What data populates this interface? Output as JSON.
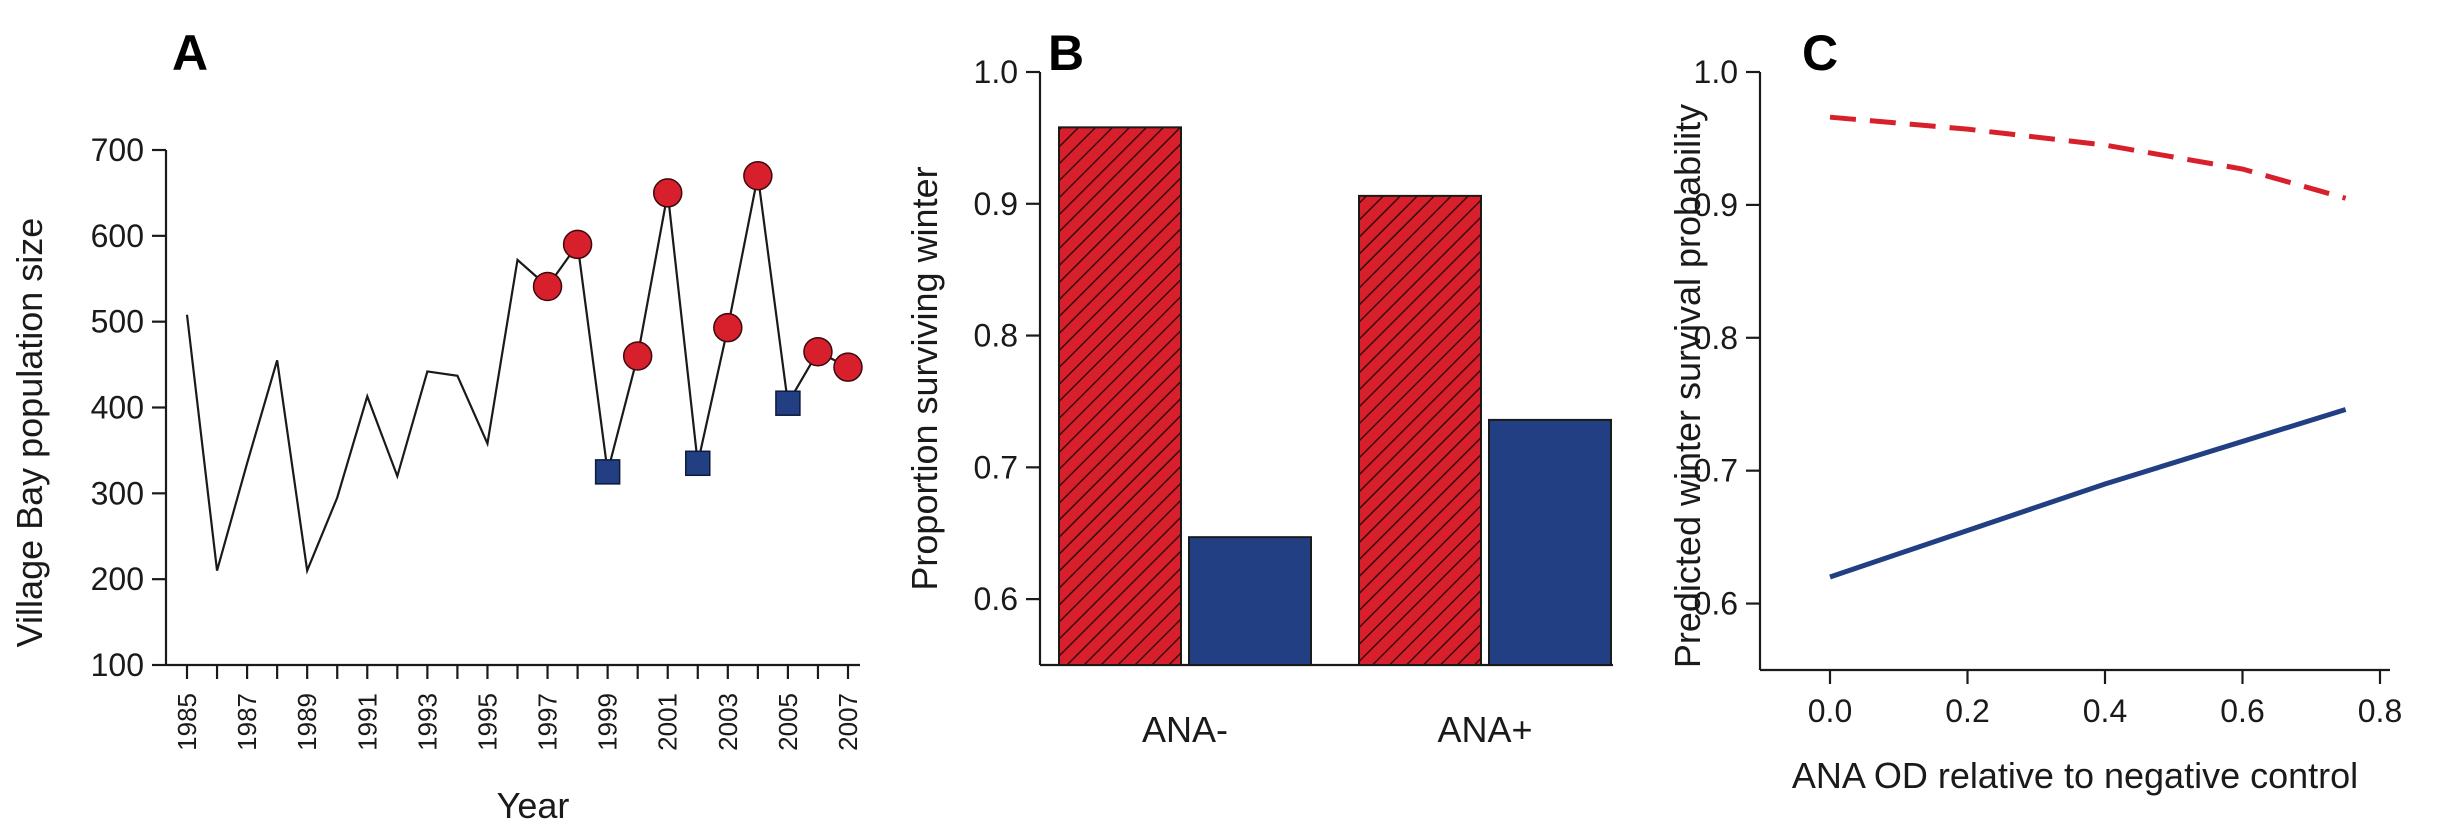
{
  "colors": {
    "red": "#d7202b",
    "blue": "#233f83",
    "line": "#1a1a1a"
  },
  "chart_data": [
    {
      "panel": "A",
      "type": "line",
      "xlabel": "Year",
      "ylabel": "Village Bay population size",
      "ylim": [
        100,
        700
      ],
      "yticks": [
        100,
        200,
        300,
        400,
        500,
        600,
        700
      ],
      "xlim": [
        1985,
        2007
      ],
      "xticks": [
        "1985",
        "1987",
        "1989",
        "1991",
        "1993",
        "1995",
        "1997",
        "1999",
        "2001",
        "2003",
        "2005",
        "2007"
      ],
      "x": [
        1985,
        1986,
        1987,
        1988,
        1989,
        1990,
        1991,
        1992,
        1993,
        1994,
        1995,
        1996,
        1997,
        1998,
        1999,
        2000,
        2001,
        2002,
        2003,
        2004,
        2005,
        2006,
        2007
      ],
      "y": [
        508,
        210,
        335,
        455,
        210,
        295,
        413,
        320,
        442,
        437,
        358,
        572,
        541,
        590,
        325,
        460,
        650,
        335,
        493,
        670,
        405,
        465,
        447
      ],
      "red_circle_years": [
        1997,
        1998,
        2000,
        2001,
        2003,
        2004,
        2006,
        2007
      ],
      "blue_square_years": [
        1999,
        2002,
        2005
      ]
    },
    {
      "panel": "B",
      "type": "bar",
      "ylabel": "Proportion surviving winter",
      "ylim": [
        0.55,
        1.0
      ],
      "yticks": [
        "0.6",
        "0.7",
        "0.8",
        "0.9",
        "1.0"
      ],
      "categories": [
        "ANA-",
        "ANA+"
      ],
      "series": [
        {
          "values": [
            0.958,
            0.906
          ]
        },
        {
          "values": [
            0.647,
            0.736
          ]
        }
      ]
    },
    {
      "panel": "C",
      "type": "line",
      "xlabel": "ANA OD relative to negative control",
      "ylabel": "Predicted winter survival probability",
      "xlim": [
        0.0,
        0.8
      ],
      "xticks": [
        "0.0",
        "0.2",
        "0.4",
        "0.6",
        "0.8"
      ],
      "ylim": [
        0.55,
        1.0
      ],
      "yticks": [
        "0.6",
        "0.7",
        "0.8",
        "0.9",
        "1.0"
      ],
      "series": [
        {
          "style": "dashed",
          "x": [
            0.0,
            0.2,
            0.4,
            0.6,
            0.75
          ],
          "y": [
            0.966,
            0.957,
            0.945,
            0.927,
            0.905
          ]
        },
        {
          "style": "solid",
          "x": [
            0.0,
            0.2,
            0.4,
            0.6,
            0.75
          ],
          "y": [
            0.62,
            0.655,
            0.69,
            0.722,
            0.746
          ]
        }
      ]
    }
  ]
}
